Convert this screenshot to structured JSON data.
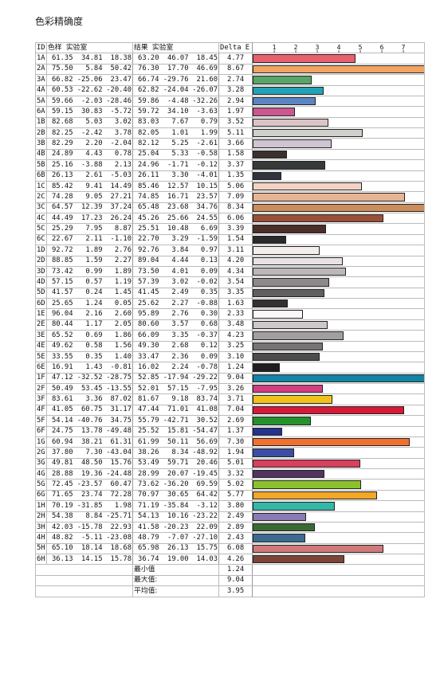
{
  "title": "色彩精确度",
  "header": {
    "id": "ID",
    "sample": "色样 实验室",
    "result": "结果 实验室",
    "delta": "Delta E"
  },
  "footer": [
    {
      "label": "最小值",
      "value": "1.24"
    },
    {
      "label": "最大值:",
      "value": "9.04"
    },
    {
      "label": "平均值:",
      "value": "3.95"
    }
  ],
  "chart_data": {
    "type": "bar",
    "orientation": "horizontal",
    "xlim": [
      0,
      8
    ],
    "ticks": [
      "1",
      "2",
      "3",
      "4",
      "5",
      "6",
      "7"
    ],
    "rows": [
      {
        "id": "1A",
        "s": [
          "61.35",
          "34.81",
          "18.38"
        ],
        "r": [
          "63.20",
          "46.07",
          "18.45"
        ],
        "de": 4.77,
        "color": "#e8606d"
      },
      {
        "id": "2A",
        "s": [
          "75.50",
          "5.84",
          "50.42"
        ],
        "r": [
          "76.30",
          "17.70",
          "46.69"
        ],
        "de": 8.67,
        "color": "#f2a463"
      },
      {
        "id": "3A",
        "s": [
          "66.82",
          "-25.06",
          "23.47"
        ],
        "r": [
          "66.74",
          "-29.76",
          "21.60"
        ],
        "de": 2.74,
        "color": "#5aa46a"
      },
      {
        "id": "4A",
        "s": [
          "60.53",
          "-22.62",
          "-20.40"
        ],
        "r": [
          "62.82",
          "-24.04",
          "-26.07"
        ],
        "de": 3.28,
        "color": "#22a2b5"
      },
      {
        "id": "5A",
        "s": [
          "59.66",
          "-2.03",
          "-28.46"
        ],
        "r": [
          "59.86",
          "-4.48",
          "-32.26"
        ],
        "de": 2.94,
        "color": "#5b84c2"
      },
      {
        "id": "6A",
        "s": [
          "59.15",
          "30.83",
          "-5.72"
        ],
        "r": [
          "59.72",
          "34.10",
          "-3.63"
        ],
        "de": 1.97,
        "color": "#c9588e"
      },
      {
        "id": "1B",
        "s": [
          "82.68",
          "5.03",
          "3.02"
        ],
        "r": [
          "83.03",
          "7.67",
          "0.79"
        ],
        "de": 3.52,
        "color": "#dcc4c6"
      },
      {
        "id": "2B",
        "s": [
          "82.25",
          "-2.42",
          "3.78"
        ],
        "r": [
          "82.05",
          "1.01",
          "1.99"
        ],
        "de": 5.11,
        "color": "#cfcfcc"
      },
      {
        "id": "3B",
        "s": [
          "82.29",
          "2.20",
          "-2.04"
        ],
        "r": [
          "82.12",
          "5.25",
          "-2.61"
        ],
        "de": 3.66,
        "color": "#cfc4d2"
      },
      {
        "id": "4B",
        "s": [
          "24.89",
          "4.43",
          "0.78"
        ],
        "r": [
          "25.04",
          "5.33",
          "-0.58"
        ],
        "de": 1.58,
        "color": "#3c2f2f"
      },
      {
        "id": "5B",
        "s": [
          "25.16",
          "-3.88",
          "2.13"
        ],
        "r": [
          "24.96",
          "-1.71",
          "-0.12"
        ],
        "de": 3.37,
        "color": "#363b39"
      },
      {
        "id": "6B",
        "s": [
          "26.13",
          "2.61",
          "-5.03"
        ],
        "r": [
          "26.11",
          "3.30",
          "-4.01"
        ],
        "de": 1.35,
        "color": "#333340"
      },
      {
        "id": "1C",
        "s": [
          "85.42",
          "9.41",
          "14.49"
        ],
        "r": [
          "85.46",
          "12.57",
          "10.15"
        ],
        "de": 5.06,
        "color": "#f2d3c3"
      },
      {
        "id": "2C",
        "s": [
          "74.28",
          "9.05",
          "27.21"
        ],
        "r": [
          "74.85",
          "16.71",
          "23.57"
        ],
        "de": 7.09,
        "color": "#e7b495"
      },
      {
        "id": "3C",
        "s": [
          "64.57",
          "12.39",
          "37.24"
        ],
        "r": [
          "65.48",
          "23.68",
          "34.76"
        ],
        "de": 8.34,
        "color": "#cc8d5c"
      },
      {
        "id": "4C",
        "s": [
          "44.49",
          "17.23",
          "26.24"
        ],
        "r": [
          "45.26",
          "25.66",
          "24.55"
        ],
        "de": 6.06,
        "color": "#9a5038"
      },
      {
        "id": "5C",
        "s": [
          "25.29",
          "7.95",
          "8.87"
        ],
        "r": [
          "25.51",
          "10.48",
          "6.69"
        ],
        "de": 3.39,
        "color": "#4b2e27"
      },
      {
        "id": "6C",
        "s": [
          "22.67",
          "2.11",
          "-1.10"
        ],
        "r": [
          "22.70",
          "3.29",
          "-1.59"
        ],
        "de": 1.54,
        "color": "#2c292a"
      },
      {
        "id": "1D",
        "s": [
          "92.72",
          "1.89",
          "2.76"
        ],
        "r": [
          "92.76",
          "3.84",
          "0.97"
        ],
        "de": 3.11,
        "color": "#f3eeec"
      },
      {
        "id": "2D",
        "s": [
          "88.85",
          "1.59",
          "2.27"
        ],
        "r": [
          "89.04",
          "4.44",
          "0.13"
        ],
        "de": 4.2,
        "color": "#e9e2e3"
      },
      {
        "id": "3D",
        "s": [
          "73.42",
          "0.99",
          "1.89"
        ],
        "r": [
          "73.50",
          "4.01",
          "0.09"
        ],
        "de": 4.34,
        "color": "#bdb7b9"
      },
      {
        "id": "4D",
        "s": [
          "57.15",
          "0.57",
          "1.19"
        ],
        "r": [
          "57.39",
          "3.02",
          "-0.02"
        ],
        "de": 3.54,
        "color": "#8d898a"
      },
      {
        "id": "5D",
        "s": [
          "41.57",
          "0.24",
          "1.45"
        ],
        "r": [
          "41.45",
          "2.49",
          "0.35"
        ],
        "de": 3.35,
        "color": "#625f60"
      },
      {
        "id": "6D",
        "s": [
          "25.65",
          "1.24",
          "0.05"
        ],
        "r": [
          "25.62",
          "2.27",
          "-0.88"
        ],
        "de": 1.63,
        "color": "#333132"
      },
      {
        "id": "1E",
        "s": [
          "96.04",
          "2.16",
          "2.60"
        ],
        "r": [
          "95.89",
          "2.76",
          "0.30"
        ],
        "de": 2.33,
        "color": "#fbf7f6"
      },
      {
        "id": "2E",
        "s": [
          "80.44",
          "1.17",
          "2.05"
        ],
        "r": [
          "80.60",
          "3.57",
          "0.68"
        ],
        "de": 3.48,
        "color": "#cdc8c9"
      },
      {
        "id": "3E",
        "s": [
          "65.52",
          "0.69",
          "1.86"
        ],
        "r": [
          "66.09",
          "3.35",
          "-0.37"
        ],
        "de": 4.23,
        "color": "#a39fa1"
      },
      {
        "id": "4E",
        "s": [
          "49.62",
          "0.58",
          "1.56"
        ],
        "r": [
          "49.30",
          "2.68",
          "0.12"
        ],
        "de": 3.25,
        "color": "#777475"
      },
      {
        "id": "5E",
        "s": [
          "33.55",
          "0.35",
          "1.40"
        ],
        "r": [
          "33.47",
          "2.36",
          "0.09"
        ],
        "de": 3.1,
        "color": "#4e4c4d"
      },
      {
        "id": "6E",
        "s": [
          "16.91",
          "1.43",
          "-0.81"
        ],
        "r": [
          "16.02",
          "2.24",
          "-0.78"
        ],
        "de": 1.24,
        "color": "#1f1d1f"
      },
      {
        "id": "1F",
        "s": [
          "47.12",
          "-32.52",
          "-28.75"
        ],
        "r": [
          "52.85",
          "-17.94",
          "-29.22"
        ],
        "de": 9.04,
        "color": "#1383a6"
      },
      {
        "id": "2F",
        "s": [
          "50.49",
          "53.45",
          "-13.55"
        ],
        "r": [
          "52.01",
          "57.15",
          "-7.95"
        ],
        "de": 3.26,
        "color": "#d33e82"
      },
      {
        "id": "3F",
        "s": [
          "83.61",
          "3.36",
          "87.02"
        ],
        "r": [
          "81.67",
          "9.18",
          "83.74"
        ],
        "de": 3.71,
        "color": "#f1c21b"
      },
      {
        "id": "4F",
        "s": [
          "41.05",
          "60.75",
          "31.17"
        ],
        "r": [
          "47.44",
          "71.01",
          "41.08"
        ],
        "de": 7.04,
        "color": "#d51a38"
      },
      {
        "id": "5F",
        "s": [
          "54.14",
          "-40.76",
          "34.75"
        ],
        "r": [
          "55.79",
          "-42.71",
          "30.52"
        ],
        "de": 2.69,
        "color": "#23922c"
      },
      {
        "id": "6F",
        "s": [
          "24.75",
          "13.78",
          "-49.48"
        ],
        "r": [
          "25.52",
          "15.81",
          "-54.47"
        ],
        "de": 1.37,
        "color": "#24338f"
      },
      {
        "id": "1G",
        "s": [
          "60.94",
          "38.21",
          "61.31"
        ],
        "r": [
          "61.99",
          "50.11",
          "56.69"
        ],
        "de": 7.3,
        "color": "#f2702e"
      },
      {
        "id": "2G",
        "s": [
          "37.80",
          "7.30",
          "-43.04"
        ],
        "r": [
          "38.26",
          "8.34",
          "-48.92"
        ],
        "de": 1.94,
        "color": "#3c4ea4"
      },
      {
        "id": "3G",
        "s": [
          "49.81",
          "48.50",
          "15.76"
        ],
        "r": [
          "53.49",
          "59.71",
          "20.46"
        ],
        "de": 5.01,
        "color": "#d8405c"
      },
      {
        "id": "4G",
        "s": [
          "28.88",
          "19.36",
          "-24.48"
        ],
        "r": [
          "28.99",
          "20.07",
          "-19.45"
        ],
        "de": 3.32,
        "color": "#533560"
      },
      {
        "id": "5G",
        "s": [
          "72.45",
          "-23.57",
          "60.47"
        ],
        "r": [
          "73.62",
          "-36.20",
          "69.59"
        ],
        "de": 5.02,
        "color": "#8bc22a"
      },
      {
        "id": "6G",
        "s": [
          "71.65",
          "23.74",
          "72.28"
        ],
        "r": [
          "70.97",
          "30.65",
          "64.42"
        ],
        "de": 5.77,
        "color": "#f3a726"
      },
      {
        "id": "1H",
        "s": [
          "70.19",
          "-31.85",
          "1.98"
        ],
        "r": [
          "71.19",
          "-35.84",
          "-3.12"
        ],
        "de": 3.8,
        "color": "#33b7a6"
      },
      {
        "id": "2H",
        "s": [
          "54.38",
          "8.84",
          "-25.71"
        ],
        "r": [
          "54.13",
          "10.16",
          "-23.22"
        ],
        "de": 2.49,
        "color": "#8a7bb6"
      },
      {
        "id": "3H",
        "s": [
          "42.03",
          "-15.78",
          "22.93"
        ],
        "r": [
          "41.58",
          "-20.23",
          "22.09"
        ],
        "de": 2.89,
        "color": "#3a6a34"
      },
      {
        "id": "4H",
        "s": [
          "48.82",
          "-5.11",
          "-23.08"
        ],
        "r": [
          "48.79",
          "-7.07",
          "-27.10"
        ],
        "de": 2.43,
        "color": "#3c6a90"
      },
      {
        "id": "5H",
        "s": [
          "65.10",
          "18.14",
          "18.68"
        ],
        "r": [
          "65.98",
          "26.13",
          "15.75"
        ],
        "de": 6.08,
        "color": "#d07a7a"
      },
      {
        "id": "6H",
        "s": [
          "36.13",
          "14.15",
          "15.78"
        ],
        "r": [
          "36.74",
          "19.00",
          "14.03"
        ],
        "de": 4.26,
        "color": "#7b4636"
      }
    ]
  }
}
